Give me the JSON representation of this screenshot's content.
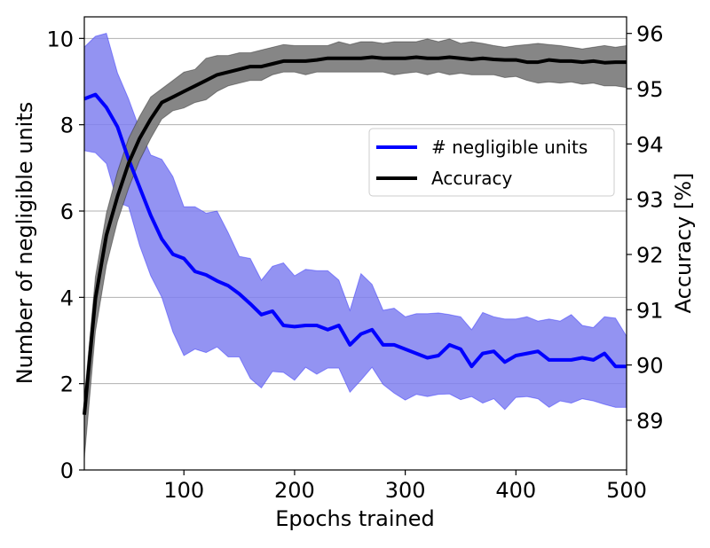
{
  "chart_data": {
    "type": "line",
    "xlabel": "Epochs trained",
    "ylabel_left": "Number of negligible units",
    "ylabel_right": "Accuracy [%]",
    "xlim": [
      10,
      500
    ],
    "ylim_left": [
      0,
      10.5
    ],
    "ylim_right": [
      88.1,
      96.3
    ],
    "x_ticks": [
      100,
      200,
      300,
      400,
      500
    ],
    "y_ticks_left": [
      0,
      2,
      4,
      6,
      8,
      10
    ],
    "y_ticks_right": [
      89,
      90,
      91,
      92,
      93,
      94,
      95,
      96
    ],
    "grid": "horizontal, left axis",
    "legend": "center-right",
    "x": [
      10,
      20,
      30,
      40,
      50,
      60,
      70,
      80,
      90,
      100,
      110,
      120,
      130,
      140,
      150,
      160,
      170,
      180,
      190,
      200,
      210,
      220,
      230,
      240,
      250,
      260,
      270,
      280,
      290,
      300,
      310,
      320,
      330,
      340,
      350,
      360,
      370,
      380,
      390,
      400,
      410,
      420,
      430,
      440,
      450,
      460,
      470,
      480,
      490,
      500
    ],
    "series": [
      {
        "name": "# negligible units",
        "axis": "left",
        "color": "#0000ff",
        "band_color": "#8080f0",
        "values": [
          8.6,
          8.7,
          8.4,
          7.95,
          7.2,
          6.55,
          5.9,
          5.35,
          5.0,
          4.9,
          4.6,
          4.52,
          4.38,
          4.27,
          4.08,
          3.85,
          3.6,
          3.68,
          3.35,
          3.32,
          3.35,
          3.35,
          3.25,
          3.35,
          2.9,
          3.15,
          3.25,
          2.9,
          2.9,
          2.8,
          2.7,
          2.6,
          2.65,
          2.9,
          2.8,
          2.4,
          2.7,
          2.75,
          2.5,
          2.65,
          2.7,
          2.75,
          2.55,
          2.55,
          2.55,
          2.6,
          2.55,
          2.7,
          2.4,
          2.4
        ],
        "upper": [
          9.8,
          10.05,
          10.12,
          9.2,
          8.6,
          7.9,
          7.3,
          7.2,
          6.8,
          6.1,
          6.1,
          5.95,
          6.0,
          5.5,
          4.95,
          4.9,
          4.4,
          4.72,
          4.8,
          4.5,
          4.65,
          4.62,
          4.62,
          4.4,
          3.7,
          4.55,
          4.3,
          3.7,
          3.75,
          3.55,
          3.62,
          3.62,
          3.64,
          3.6,
          3.55,
          3.25,
          3.65,
          3.55,
          3.5,
          3.5,
          3.55,
          3.45,
          3.5,
          3.45,
          3.6,
          3.35,
          3.3,
          3.55,
          3.52,
          3.1
        ],
        "lower": [
          7.4,
          7.35,
          7.1,
          6.2,
          6.1,
          5.2,
          4.5,
          4.0,
          3.2,
          2.65,
          2.8,
          2.72,
          2.85,
          2.62,
          2.62,
          2.12,
          1.9,
          2.28,
          2.26,
          2.08,
          2.38,
          2.22,
          2.36,
          2.36,
          1.8,
          2.08,
          2.38,
          1.98,
          1.78,
          1.62,
          1.75,
          1.7,
          1.75,
          1.76,
          1.63,
          1.7,
          1.55,
          1.65,
          1.4,
          1.68,
          1.7,
          1.65,
          1.45,
          1.6,
          1.55,
          1.65,
          1.6,
          1.52,
          1.45,
          1.45
        ]
      },
      {
        "name": "Accuracy",
        "axis": "right",
        "color": "#000000",
        "band_color": "#808080",
        "values": [
          89.1,
          91.2,
          92.35,
          93.05,
          93.65,
          94.1,
          94.45,
          94.75,
          94.85,
          94.95,
          95.05,
          95.15,
          95.25,
          95.3,
          95.35,
          95.4,
          95.4,
          95.45,
          95.5,
          95.5,
          95.5,
          95.52,
          95.55,
          95.55,
          95.55,
          95.55,
          95.57,
          95.55,
          95.55,
          95.55,
          95.57,
          95.55,
          95.55,
          95.57,
          95.55,
          95.53,
          95.55,
          95.53,
          95.52,
          95.52,
          95.48,
          95.48,
          95.52,
          95.5,
          95.5,
          95.48,
          95.5,
          95.47,
          95.48,
          95.48
        ],
        "upper": [
          89.4,
          91.6,
          92.75,
          93.5,
          94.1,
          94.5,
          94.85,
          95.0,
          95.15,
          95.3,
          95.35,
          95.55,
          95.6,
          95.6,
          95.65,
          95.65,
          95.7,
          95.75,
          95.8,
          95.78,
          95.78,
          95.78,
          95.78,
          95.85,
          95.8,
          95.85,
          95.85,
          95.82,
          95.85,
          95.85,
          95.85,
          95.9,
          95.85,
          95.9,
          95.82,
          95.85,
          95.82,
          95.78,
          95.75,
          95.78,
          95.8,
          95.82,
          95.8,
          95.78,
          95.75,
          95.72,
          95.75,
          95.78,
          95.75,
          95.78
        ],
        "lower": [
          88.3,
          90.6,
          91.8,
          92.6,
          93.2,
          93.7,
          94.1,
          94.45,
          94.6,
          94.65,
          94.75,
          94.8,
          94.95,
          95.05,
          95.1,
          95.15,
          95.15,
          95.25,
          95.3,
          95.3,
          95.25,
          95.3,
          95.3,
          95.3,
          95.3,
          95.3,
          95.3,
          95.3,
          95.25,
          95.28,
          95.3,
          95.25,
          95.3,
          95.25,
          95.28,
          95.25,
          95.25,
          95.25,
          95.2,
          95.22,
          95.15,
          95.1,
          95.12,
          95.1,
          95.12,
          95.08,
          95.1,
          95.05,
          95.05,
          95.02
        ]
      }
    ]
  }
}
